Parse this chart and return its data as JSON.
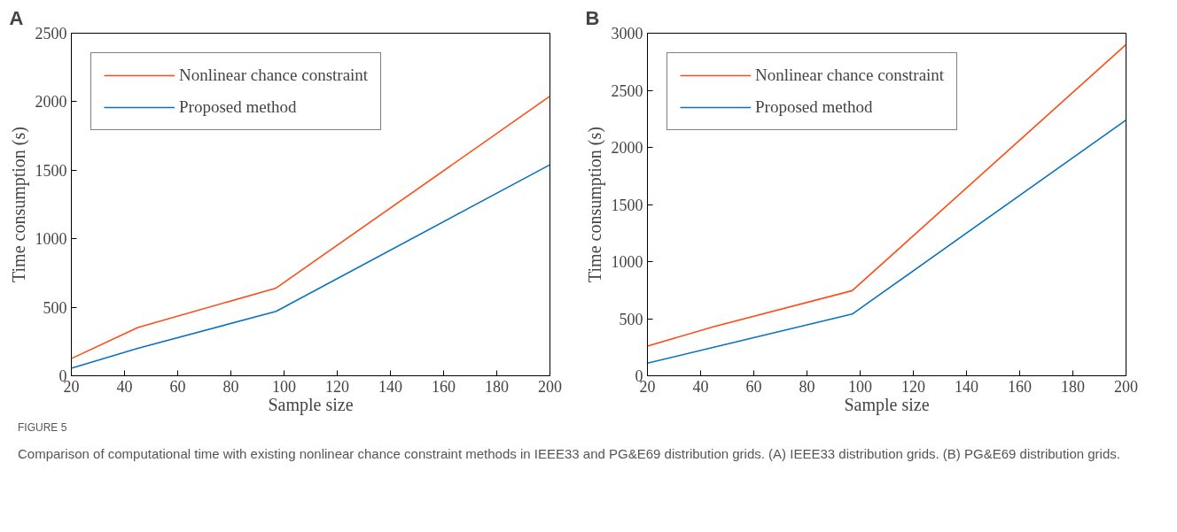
{
  "chart_data": [
    {
      "type": "line",
      "title": "A",
      "xlabel": "Sample size",
      "ylabel": "Time consumption (s)",
      "x": [
        20,
        45,
        97,
        200
      ],
      "series": [
        {
          "name": "Nonlinear chance constraint",
          "color": "#ff4c17",
          "values": [
            125,
            352,
            640,
            2040
          ]
        },
        {
          "name": "Proposed method",
          "color": "#0a72c0",
          "values": [
            55,
            200,
            470,
            1540
          ]
        }
      ],
      "xlim": [
        20,
        200
      ],
      "xticks": [
        20,
        40,
        60,
        80,
        100,
        120,
        140,
        160,
        180,
        200
      ],
      "ylim": [
        0,
        2500
      ],
      "yticks": [
        0,
        500,
        1000,
        1500,
        2000,
        2500
      ],
      "grid": false,
      "legend": "top left",
      "marker": "none",
      "line_style": "solid",
      "annotations": [
        "FIGURE 5",
        "Comparison of computational time with existing nonlinear chance constraint methods in IEEE33 and PG&E69 distribution grids. (A) IEEE33 distribution grids. (B) PG&E69 distribution grids."
      ]
    },
    {
      "type": "line",
      "title": "B",
      "xlabel": "Sample size",
      "ylabel": "Time consumption (s)",
      "x": [
        20,
        45,
        97,
        200
      ],
      "series": [
        {
          "name": "Nonlinear chance constraint",
          "color": "#ff4c17",
          "values": [
            260,
            430,
            745,
            2900
          ]
        },
        {
          "name": "Proposed method",
          "color": "#0a72c0",
          "values": [
            110,
            250,
            540,
            2240
          ]
        }
      ],
      "xlim": [
        20,
        200
      ],
      "xticks": [
        20,
        40,
        60,
        80,
        100,
        120,
        140,
        160,
        180,
        200
      ],
      "ylim": [
        0,
        3000
      ],
      "yticks": [
        0,
        500,
        1000,
        1500,
        2000,
        2500,
        3000
      ],
      "grid": false,
      "legend": "top left",
      "marker": "none",
      "line_style": "solid"
    }
  ]
}
